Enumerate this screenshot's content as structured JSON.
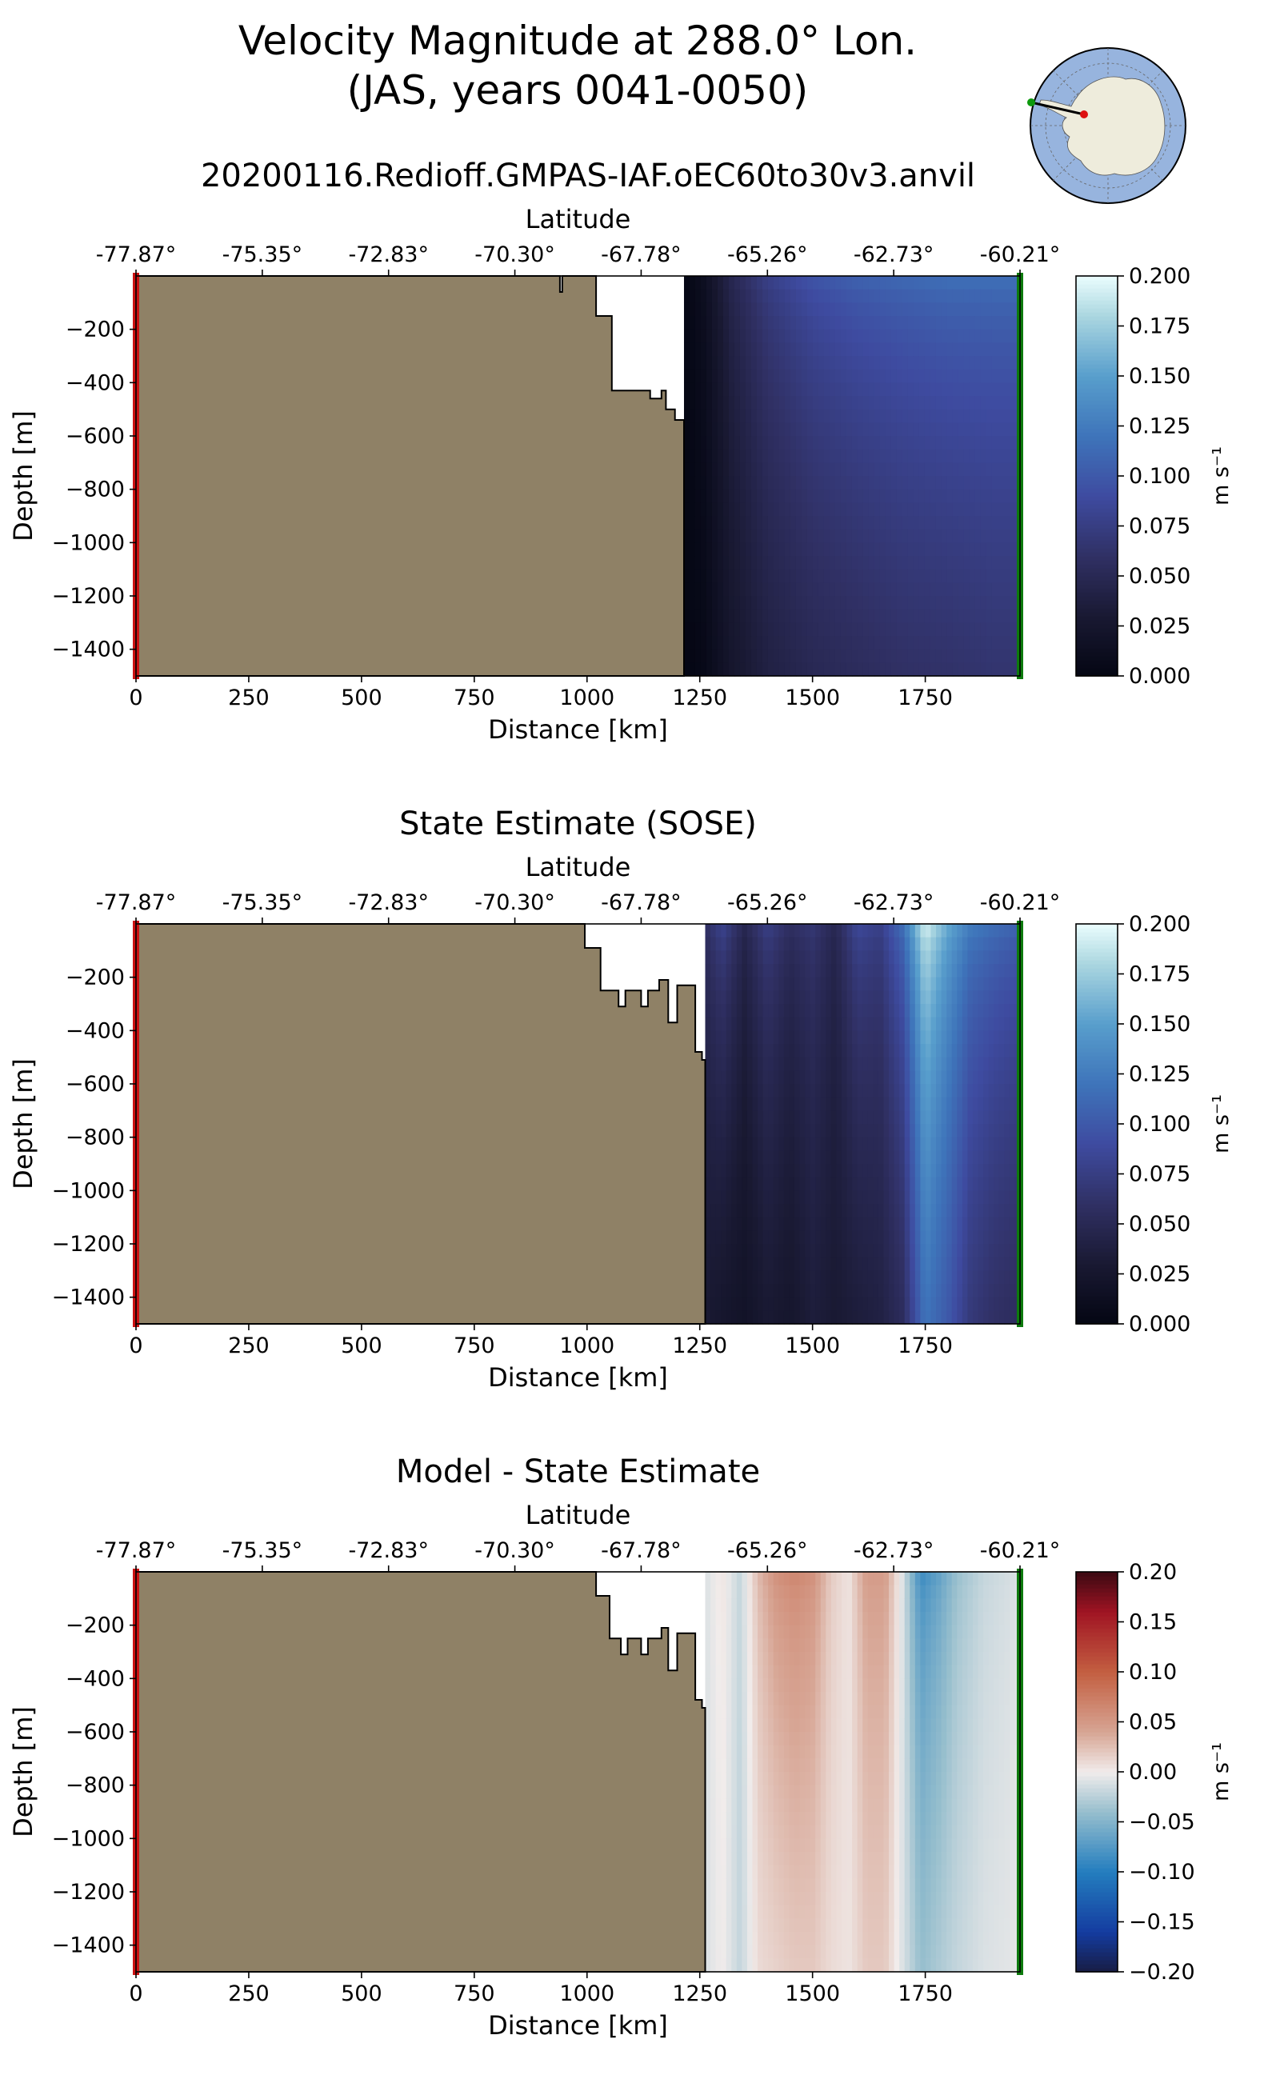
{
  "header": {
    "title_line1": "Velocity Magnitude at 288.0° Lon.",
    "title_line2": "(JAS, years 0041-0050)",
    "subtitle": "20200116.Redioff.GMPAS-IAF.oEC60to30v3.anvil"
  },
  "colors": {
    "land": "#8f8166",
    "start_marker": "#cc1111",
    "end_marker": "#0d7a0d",
    "ocean_map": "#97b4de",
    "land_map": "#eeecdc"
  },
  "locator_map": {
    "description_icon": "antarctica-polar-map-icon"
  },
  "chart_data": [
    {
      "type": "heatmap",
      "name": "model",
      "title": "",
      "xlabel": "Distance [km]",
      "ylabel": "Depth [m]",
      "x2label": "Latitude",
      "xlim": [
        0,
        1960
      ],
      "ylim": [
        -1500,
        0
      ],
      "xticks": [
        0,
        250,
        500,
        750,
        1000,
        1250,
        1500,
        1750
      ],
      "xtick_labels": [
        "0",
        "250",
        "500",
        "750",
        "1000",
        "1250",
        "1500",
        "1750"
      ],
      "yticks": [
        -200,
        -400,
        -600,
        -800,
        -1000,
        -1200,
        -1400
      ],
      "ytick_labels": [
        "−200",
        "−400",
        "−600",
        "−800",
        "−1000",
        "−1200",
        "−1400"
      ],
      "lat_ticks_km": [
        0,
        280,
        560,
        840,
        1120,
        1400,
        1680,
        1960
      ],
      "lat_tick_labels": [
        "-77.87°",
        "-75.35°",
        "-72.83°",
        "-70.30°",
        "-67.78°",
        "-65.26°",
        "-62.73°",
        "-60.21°"
      ],
      "colorbar": {
        "label": "m s⁻¹",
        "min": 0.0,
        "max": 0.2,
        "ticks": [
          0.0,
          0.025,
          0.05,
          0.075,
          0.1,
          0.125,
          0.15,
          0.175,
          0.2
        ],
        "tick_labels": [
          "0.000",
          "0.025",
          "0.050",
          "0.075",
          "0.100",
          "0.125",
          "0.150",
          "0.175",
          "0.200"
        ],
        "colormap": "ice"
      },
      "bathymetry_km_depth": [
        [
          0,
          0
        ],
        [
          940,
          0
        ],
        [
          940,
          -60
        ],
        [
          945,
          -60
        ],
        [
          945,
          0
        ],
        [
          1020,
          0
        ],
        [
          1020,
          -150
        ],
        [
          1055,
          -150
        ],
        [
          1055,
          -430
        ],
        [
          1140,
          -430
        ],
        [
          1140,
          -460
        ],
        [
          1165,
          -460
        ],
        [
          1165,
          -430
        ],
        [
          1175,
          -430
        ],
        [
          1175,
          -500
        ],
        [
          1195,
          -500
        ],
        [
          1195,
          -540
        ],
        [
          1215,
          -540
        ],
        [
          1215,
          -1500
        ],
        [
          0,
          -1500
        ]
      ],
      "profile": {
        "x": [
          1215,
          1260,
          1320,
          1400,
          1500,
          1600,
          1700,
          1800,
          1900,
          1960
        ],
        "surface": [
          0.0,
          0.015,
          0.05,
          0.08,
          0.1,
          0.11,
          0.115,
          0.12,
          0.12,
          0.12
        ],
        "deep": [
          0.0,
          0.005,
          0.025,
          0.04,
          0.05,
          0.055,
          0.06,
          0.062,
          0.065,
          0.065
        ]
      }
    },
    {
      "type": "heatmap",
      "name": "sose",
      "title": "State Estimate (SOSE)",
      "xlabel": "Distance [km]",
      "ylabel": "Depth [m]",
      "x2label": "Latitude",
      "xlim": [
        0,
        1960
      ],
      "ylim": [
        -1500,
        0
      ],
      "xticks": [
        0,
        250,
        500,
        750,
        1000,
        1250,
        1500,
        1750
      ],
      "xtick_labels": [
        "0",
        "250",
        "500",
        "750",
        "1000",
        "1250",
        "1500",
        "1750"
      ],
      "yticks": [
        -200,
        -400,
        -600,
        -800,
        -1000,
        -1200,
        -1400
      ],
      "ytick_labels": [
        "−200",
        "−400",
        "−600",
        "−800",
        "−1000",
        "−1200",
        "−1400"
      ],
      "lat_ticks_km": [
        0,
        280,
        560,
        840,
        1120,
        1400,
        1680,
        1960
      ],
      "lat_tick_labels": [
        "-77.87°",
        "-75.35°",
        "-72.83°",
        "-70.30°",
        "-67.78°",
        "-65.26°",
        "-62.73°",
        "-60.21°"
      ],
      "colorbar": {
        "label": "m s⁻¹",
        "min": 0.0,
        "max": 0.2,
        "ticks": [
          0.0,
          0.025,
          0.05,
          0.075,
          0.1,
          0.125,
          0.15,
          0.175,
          0.2
        ],
        "tick_labels": [
          "0.000",
          "0.025",
          "0.050",
          "0.075",
          "0.100",
          "0.125",
          "0.150",
          "0.175",
          "0.200"
        ],
        "colormap": "ice"
      },
      "bathymetry_km_depth": [
        [
          0,
          0
        ],
        [
          995,
          0
        ],
        [
          995,
          -90
        ],
        [
          1030,
          -90
        ],
        [
          1030,
          -250
        ],
        [
          1070,
          -250
        ],
        [
          1070,
          -310
        ],
        [
          1085,
          -310
        ],
        [
          1085,
          -250
        ],
        [
          1120,
          -250
        ],
        [
          1120,
          -310
        ],
        [
          1135,
          -310
        ],
        [
          1135,
          -250
        ],
        [
          1160,
          -250
        ],
        [
          1160,
          -210
        ],
        [
          1180,
          -210
        ],
        [
          1180,
          -370
        ],
        [
          1200,
          -370
        ],
        [
          1200,
          -230
        ],
        [
          1240,
          -230
        ],
        [
          1240,
          -480
        ],
        [
          1255,
          -480
        ],
        [
          1255,
          -510
        ],
        [
          1262,
          -510
        ],
        [
          1262,
          -1500
        ],
        [
          0,
          -1500
        ]
      ],
      "profile": {
        "x": [
          1262,
          1300,
          1350,
          1400,
          1450,
          1500,
          1550,
          1600,
          1650,
          1700,
          1750,
          1800,
          1850,
          1900,
          1960
        ],
        "surface": [
          0.06,
          0.085,
          0.05,
          0.08,
          0.06,
          0.07,
          0.05,
          0.09,
          0.08,
          0.12,
          0.2,
          0.16,
          0.13,
          0.12,
          0.11
        ],
        "deep": [
          0.03,
          0.025,
          0.02,
          0.03,
          0.025,
          0.035,
          0.03,
          0.035,
          0.04,
          0.055,
          0.12,
          0.1,
          0.07,
          0.06,
          0.055
        ]
      }
    },
    {
      "type": "heatmap",
      "name": "difference",
      "title": "Model - State Estimate",
      "xlabel": "Distance [km]",
      "ylabel": "Depth [m]",
      "x2label": "Latitude",
      "xlim": [
        0,
        1960
      ],
      "ylim": [
        -1500,
        0
      ],
      "xticks": [
        0,
        250,
        500,
        750,
        1000,
        1250,
        1500,
        1750
      ],
      "xtick_labels": [
        "0",
        "250",
        "500",
        "750",
        "1000",
        "1250",
        "1500",
        "1750"
      ],
      "yticks": [
        -200,
        -400,
        -600,
        -800,
        -1000,
        -1200,
        -1400
      ],
      "ytick_labels": [
        "−200",
        "−400",
        "−600",
        "−800",
        "−1000",
        "−1200",
        "−1400"
      ],
      "lat_ticks_km": [
        0,
        280,
        560,
        840,
        1120,
        1400,
        1680,
        1960
      ],
      "lat_tick_labels": [
        "-77.87°",
        "-75.35°",
        "-72.83°",
        "-70.30°",
        "-67.78°",
        "-65.26°",
        "-62.73°",
        "-60.21°"
      ],
      "colorbar": {
        "label": "m s⁻¹",
        "min": -0.2,
        "max": 0.2,
        "ticks": [
          -0.2,
          -0.15,
          -0.1,
          -0.05,
          0.0,
          0.05,
          0.1,
          0.15,
          0.2
        ],
        "tick_labels": [
          "−0.20",
          "−0.15",
          "−0.10",
          "−0.05",
          "0.00",
          "0.05",
          "0.10",
          "0.15",
          "0.20"
        ],
        "colormap": "balance"
      },
      "bathymetry_km_depth": [
        [
          0,
          0
        ],
        [
          1020,
          0
        ],
        [
          1020,
          -90
        ],
        [
          1050,
          -90
        ],
        [
          1050,
          -250
        ],
        [
          1075,
          -250
        ],
        [
          1075,
          -310
        ],
        [
          1090,
          -310
        ],
        [
          1090,
          -250
        ],
        [
          1120,
          -250
        ],
        [
          1120,
          -310
        ],
        [
          1135,
          -310
        ],
        [
          1135,
          -250
        ],
        [
          1165,
          -250
        ],
        [
          1165,
          -210
        ],
        [
          1180,
          -210
        ],
        [
          1180,
          -370
        ],
        [
          1200,
          -370
        ],
        [
          1200,
          -230
        ],
        [
          1240,
          -230
        ],
        [
          1240,
          -480
        ],
        [
          1255,
          -480
        ],
        [
          1255,
          -510
        ],
        [
          1262,
          -510
        ],
        [
          1262,
          -1500
        ],
        [
          0,
          -1500
        ]
      ],
      "profile": {
        "x": [
          1262,
          1300,
          1340,
          1380,
          1420,
          1460,
          1500,
          1540,
          1580,
          1620,
          1660,
          1700,
          1740,
          1780,
          1820,
          1880,
          1960
        ],
        "surface": [
          -0.01,
          0.005,
          -0.02,
          0.03,
          0.06,
          0.07,
          0.06,
          0.02,
          0.005,
          0.05,
          0.05,
          -0.01,
          -0.09,
          -0.07,
          -0.04,
          -0.02,
          -0.01
        ],
        "deep": [
          -0.01,
          0.0,
          -0.02,
          0.01,
          0.015,
          0.02,
          0.02,
          0.01,
          0.005,
          0.02,
          0.02,
          -0.01,
          -0.04,
          -0.03,
          -0.02,
          -0.01,
          -0.005
        ]
      }
    }
  ]
}
